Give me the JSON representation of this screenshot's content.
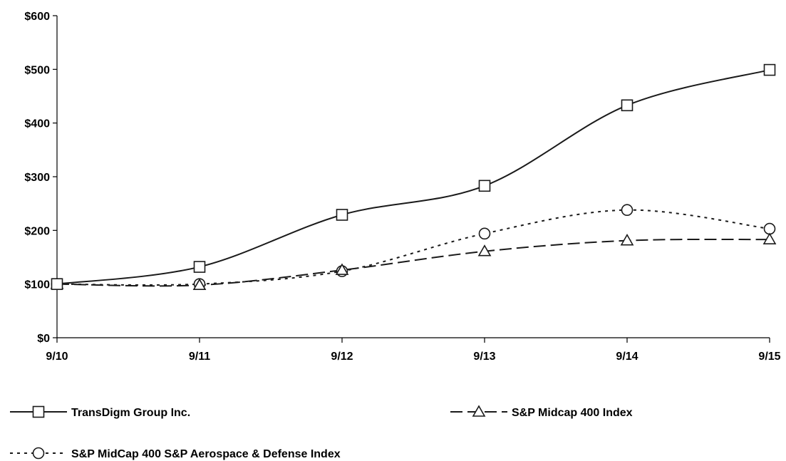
{
  "chart_data": {
    "type": "line",
    "title": "",
    "xlabel": "",
    "ylabel": "",
    "categories": [
      "9/10",
      "9/11",
      "9/12",
      "9/13",
      "9/14",
      "9/15"
    ],
    "ylim": [
      0,
      600
    ],
    "y_ticks": [
      "$0",
      "$100",
      "$200",
      "$300",
      "$400",
      "$500",
      "$600"
    ],
    "y_tick_values": [
      0,
      100,
      200,
      300,
      400,
      500,
      600
    ],
    "grid": false,
    "legend_position": "bottom",
    "series": [
      {
        "name": "TransDigm Group Inc.",
        "values": [
          100,
          132,
          229,
          283,
          433,
          499
        ],
        "line_style": "solid",
        "marker": "square",
        "color": "#1a1a1a"
      },
      {
        "name": "S&P Midcap 400 Index",
        "values": [
          100,
          98,
          126,
          161,
          181,
          183
        ],
        "line_style": "dashed",
        "marker": "triangle",
        "color": "#1a1a1a"
      },
      {
        "name": "S&P MidCap 400 S&P Aerospace & Defense Index",
        "values": [
          100,
          100,
          124,
          194,
          238,
          203
        ],
        "line_style": "dotted",
        "marker": "circle",
        "color": "#1a1a1a"
      }
    ]
  }
}
